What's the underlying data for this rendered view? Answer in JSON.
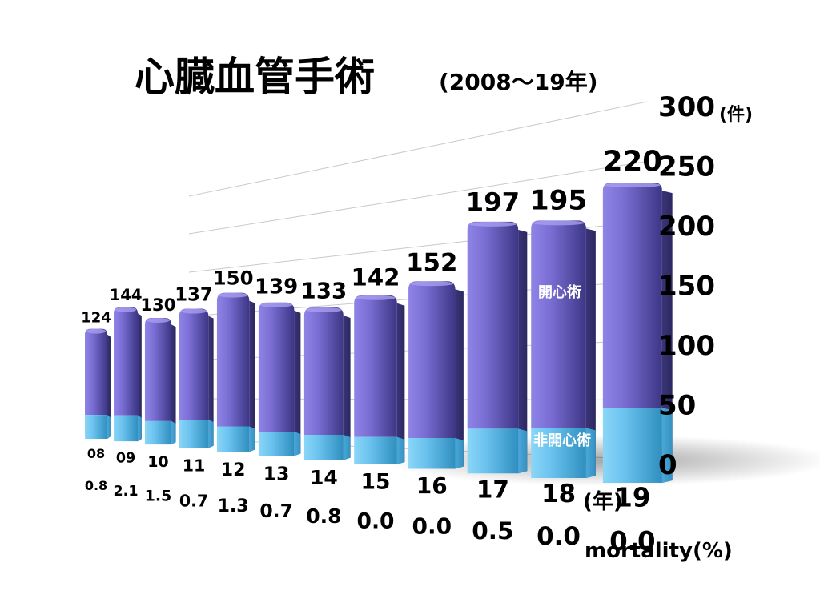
{
  "chart_data": {
    "type": "bar",
    "title": "心臓血管手術",
    "subtitle": "(2008〜19年)",
    "categories": [
      "08",
      "09",
      "10",
      "11",
      "12",
      "13",
      "14",
      "15",
      "16",
      "17",
      "18",
      "19"
    ],
    "totals": [
      124,
      144,
      130,
      137,
      150,
      139,
      133,
      142,
      152,
      197,
      195,
      220
    ],
    "series": [
      {
        "name": "非開心術",
        "values": [
          27,
          28,
          24,
          28,
          24,
          22,
          22,
          23,
          25,
          35,
          38,
          55
        ]
      },
      {
        "name": "開心術",
        "values": [
          97,
          116,
          106,
          109,
          126,
          117,
          111,
          119,
          127,
          162,
          157,
          165
        ]
      }
    ],
    "mortality": [
      "0.8",
      "2.1",
      "1.5",
      "0.7",
      "1.3",
      "0.7",
      "0.8",
      "0.0",
      "0.0",
      "0.5",
      "0.0",
      "0.0"
    ],
    "yticks": [
      "0",
      "50",
      "100",
      "150",
      "200",
      "250",
      "300"
    ],
    "ylim": [
      0,
      300
    ],
    "yunit": "(件)",
    "xunit": "(年)",
    "mortality_label": "mortality(%)",
    "grid": true,
    "colors": {
      "upper": "#7b6fd6",
      "upper_dark": "#3a3580",
      "lower": "#6cc3ef",
      "lower_dark": "#2f8fbf"
    }
  }
}
